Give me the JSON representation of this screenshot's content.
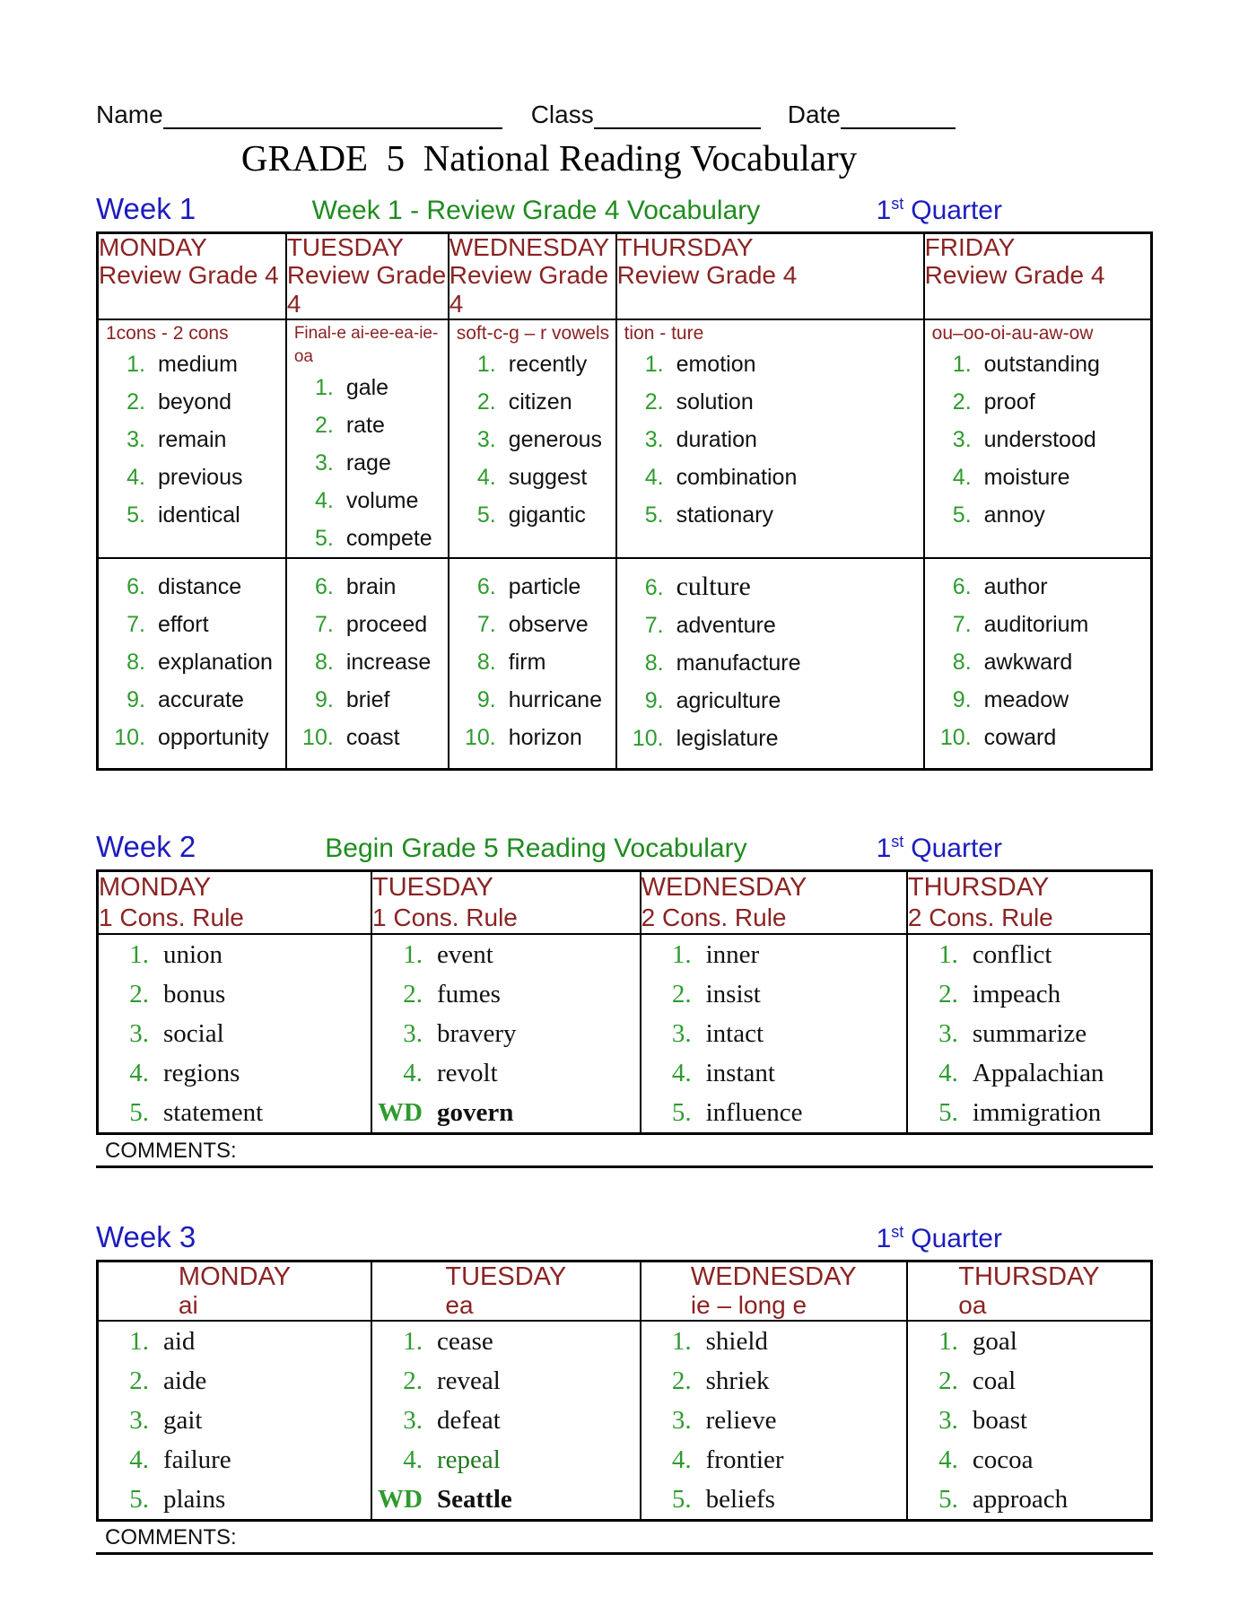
{
  "header": {
    "name_label": "Name",
    "class_label": "Class",
    "date_label": "Date",
    "title": "GRADE  5  National Reading Vocabulary"
  },
  "quarter": {
    "num": "1",
    "sup": "st",
    "word": "Quarter"
  },
  "comments_label": "COMMENTS:",
  "colors": {
    "blue": "#1c1cbe",
    "green_heading": "#1f8b1f",
    "green_number": "#2e9b2e",
    "maroon": "#8b2323",
    "text": "#111111"
  },
  "weeks": [
    {
      "label": "Week 1",
      "subtitle": "Week 1 - Review Grade 4 Vocabulary",
      "columns": [
        {
          "day": "MONDAY",
          "sub": "Review Grade 4",
          "pattern": "1cons - 2 cons",
          "words": [
            "medium",
            "beyond",
            "remain",
            "previous",
            "identical",
            "distance",
            "effort",
            "explanation",
            "accurate",
            "opportunity"
          ]
        },
        {
          "day": "TUESDAY",
          "sub": "Review Grade 4",
          "pattern": "Final-e ai-ee-ea-ie-oa",
          "pattern_small": true,
          "words": [
            "gale",
            "rate",
            "rage",
            "volume",
            "compete",
            "brain",
            "proceed",
            "increase",
            "brief",
            "coast"
          ]
        },
        {
          "day": "WEDNESDAY",
          "sub": "Review Grade 4",
          "pattern": "soft-c-g – r vowels",
          "words": [
            "recently",
            "citizen",
            "generous",
            "suggest",
            "gigantic",
            "particle",
            "observe",
            "firm",
            "hurricane",
            "horizon"
          ]
        },
        {
          "day": "THURSDAY",
          "sub": "Review Grade 4",
          "pattern": "tion - ture",
          "words": [
            "emotion",
            "solution",
            "duration",
            "combination",
            "stationary",
            {
              "w": "culture",
              "style": "serif"
            },
            "adventure",
            "manufacture",
            "agriculture",
            "legislature"
          ]
        },
        {
          "day": "FRIDAY",
          "sub": "Review Grade 4",
          "pattern": "ou–oo-oi-au-aw-ow",
          "words": [
            "outstanding",
            "proof",
            "understood",
            "moisture",
            "annoy",
            "author",
            "auditorium",
            "awkward",
            "meadow",
            "coward"
          ]
        }
      ]
    },
    {
      "label": "Week 2",
      "subtitle": "Begin Grade 5 Reading Vocabulary",
      "columns": [
        {
          "day": "MONDAY",
          "sub": "1 Cons. Rule",
          "words": [
            "union",
            "bonus",
            "social",
            "regions",
            "statement"
          ]
        },
        {
          "day": "TUESDAY",
          "sub": "1 Cons. Rule",
          "words": [
            "event",
            "fumes",
            "bravery",
            "revolt",
            {
              "wd": "WD",
              "w": "govern"
            }
          ]
        },
        {
          "day": "WEDNESDAY",
          "sub": "2 Cons. Rule",
          "words": [
            "inner",
            "insist",
            "intact",
            "instant",
            "influence"
          ]
        },
        {
          "day": "THURSDAY",
          "sub": "2 Cons. Rule",
          "words": [
            "conflict",
            "impeach",
            "summarize",
            "Appalachian",
            "immigration"
          ]
        }
      ]
    },
    {
      "label": "Week 3",
      "subtitle": "",
      "columns": [
        {
          "day": "MONDAY",
          "sub": "ai",
          "words": [
            "aid",
            "aide",
            "gait",
            "failure",
            "plains"
          ]
        },
        {
          "day": "TUESDAY",
          "sub": "ea",
          "words": [
            "cease",
            "reveal",
            "defeat",
            {
              "w": "repeal",
              "style": "green"
            },
            {
              "wd": "WD",
              "w": "Seattle"
            }
          ]
        },
        {
          "day": "WEDNESDAY",
          "sub": "ie – long e",
          "words": [
            "shield",
            "shriek",
            "relieve",
            "frontier",
            "beliefs"
          ]
        },
        {
          "day": "THURSDAY",
          "sub": "oa",
          "words": [
            "goal",
            "coal",
            "boast",
            "cocoa",
            "approach"
          ]
        }
      ]
    }
  ]
}
